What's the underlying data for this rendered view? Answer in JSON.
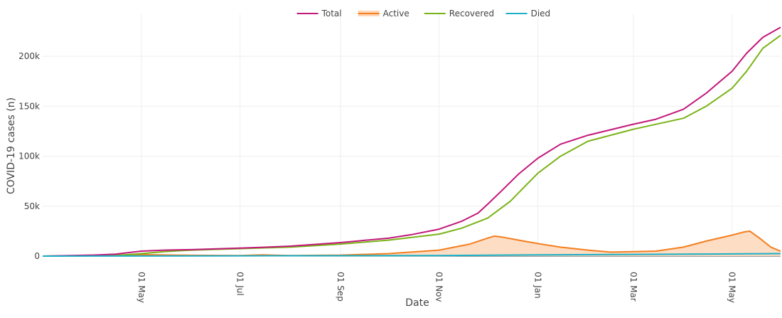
{
  "chart_data": {
    "type": "line",
    "title": "",
    "xlabel": "Date",
    "ylabel": "COVID-19 cases (n)",
    "x_axis": {
      "type": "date",
      "range": [
        "2020-03-01",
        "2021-05-31"
      ],
      "tick_labels": [
        "01 May",
        "01 Jul",
        "01 Sep",
        "01 Nov",
        "01 Jan",
        "01 Mar",
        "01 May"
      ],
      "tick_dates": [
        "2020-05-01",
        "2020-07-01",
        "2020-09-01",
        "2020-11-01",
        "2021-01-01",
        "2021-03-01",
        "2021-05-01"
      ]
    },
    "y_axis": {
      "range": [
        0,
        235000
      ],
      "tick_values": [
        0,
        50000,
        100000,
        150000,
        200000
      ],
      "tick_labels": [
        "0",
        "50k",
        "100k",
        "150k",
        "200k"
      ]
    },
    "grid": true,
    "legend_position": "top-center",
    "series": [
      {
        "name": "Total",
        "color": "#c2187a",
        "fill": false,
        "points": [
          [
            "2020-03-01",
            0
          ],
          [
            "2020-04-01",
            1000
          ],
          [
            "2020-04-15",
            2000
          ],
          [
            "2020-05-01",
            5000
          ],
          [
            "2020-05-15",
            6000
          ],
          [
            "2020-06-01",
            6500
          ],
          [
            "2020-07-01",
            8000
          ],
          [
            "2020-07-15",
            8800
          ],
          [
            "2020-08-01",
            10000
          ],
          [
            "2020-09-01",
            13500
          ],
          [
            "2020-10-01",
            18000
          ],
          [
            "2020-10-15",
            21500
          ],
          [
            "2020-11-01",
            27000
          ],
          [
            "2020-11-15",
            35000
          ],
          [
            "2020-11-25",
            43000
          ],
          [
            "2020-12-01",
            52000
          ],
          [
            "2020-12-10",
            66000
          ],
          [
            "2020-12-20",
            82000
          ],
          [
            "2021-01-01",
            98000
          ],
          [
            "2021-01-15",
            112000
          ],
          [
            "2021-02-01",
            121000
          ],
          [
            "2021-03-01",
            132000
          ],
          [
            "2021-03-15",
            137000
          ],
          [
            "2021-04-01",
            147000
          ],
          [
            "2021-04-15",
            163000
          ],
          [
            "2021-05-01",
            185000
          ],
          [
            "2021-05-10",
            203000
          ],
          [
            "2021-05-20",
            219000
          ],
          [
            "2021-05-31",
            229000
          ]
        ]
      },
      {
        "name": "Active",
        "color": "#f47f20",
        "fill": true,
        "fill_color": "#fdd7b8",
        "points": [
          [
            "2020-03-01",
            0
          ],
          [
            "2020-04-15",
            1000
          ],
          [
            "2020-05-01",
            1500
          ],
          [
            "2020-06-01",
            800
          ],
          [
            "2020-07-01",
            500
          ],
          [
            "2020-07-15",
            1200
          ],
          [
            "2020-08-01",
            600
          ],
          [
            "2020-09-01",
            1000
          ],
          [
            "2020-10-01",
            2500
          ],
          [
            "2020-11-01",
            6000
          ],
          [
            "2020-11-20",
            12000
          ],
          [
            "2020-12-01",
            18000
          ],
          [
            "2020-12-05",
            20000
          ],
          [
            "2020-12-10",
            19000
          ],
          [
            "2020-12-20",
            16000
          ],
          [
            "2021-01-01",
            12500
          ],
          [
            "2021-01-15",
            9000
          ],
          [
            "2021-02-01",
            6000
          ],
          [
            "2021-02-15",
            4000
          ],
          [
            "2021-03-01",
            4500
          ],
          [
            "2021-03-15",
            5000
          ],
          [
            "2021-04-01",
            9000
          ],
          [
            "2021-04-15",
            15000
          ],
          [
            "2021-05-01",
            21000
          ],
          [
            "2021-05-08",
            24000
          ],
          [
            "2021-05-12",
            25000
          ],
          [
            "2021-05-18",
            18000
          ],
          [
            "2021-05-25",
            9000
          ],
          [
            "2021-05-31",
            5000
          ]
        ]
      },
      {
        "name": "Recovered",
        "color": "#7ab317",
        "fill": false,
        "points": [
          [
            "2020-03-01",
            0
          ],
          [
            "2020-04-15",
            500
          ],
          [
            "2020-05-01",
            2500
          ],
          [
            "2020-05-15",
            4500
          ],
          [
            "2020-06-01",
            6000
          ],
          [
            "2020-07-01",
            7500
          ],
          [
            "2020-08-01",
            9000
          ],
          [
            "2020-09-01",
            12000
          ],
          [
            "2020-10-01",
            16000
          ],
          [
            "2020-11-01",
            22000
          ],
          [
            "2020-11-15",
            28000
          ],
          [
            "2020-12-01",
            38000
          ],
          [
            "2020-12-15",
            55000
          ],
          [
            "2021-01-01",
            83000
          ],
          [
            "2021-01-15",
            100000
          ],
          [
            "2021-02-01",
            115000
          ],
          [
            "2021-03-01",
            127000
          ],
          [
            "2021-04-01",
            138000
          ],
          [
            "2021-04-15",
            150000
          ],
          [
            "2021-05-01",
            168000
          ],
          [
            "2021-05-10",
            185000
          ],
          [
            "2021-05-20",
            208000
          ],
          [
            "2021-05-31",
            221000
          ]
        ]
      },
      {
        "name": "Died",
        "color": "#1ab0c8",
        "fill": false,
        "points": [
          [
            "2020-03-01",
            0
          ],
          [
            "2020-07-01",
            300
          ],
          [
            "2020-11-01",
            600
          ],
          [
            "2021-01-01",
            1200
          ],
          [
            "2021-03-01",
            1700
          ],
          [
            "2021-05-01",
            2200
          ],
          [
            "2021-05-31",
            2500
          ]
        ]
      }
    ]
  }
}
